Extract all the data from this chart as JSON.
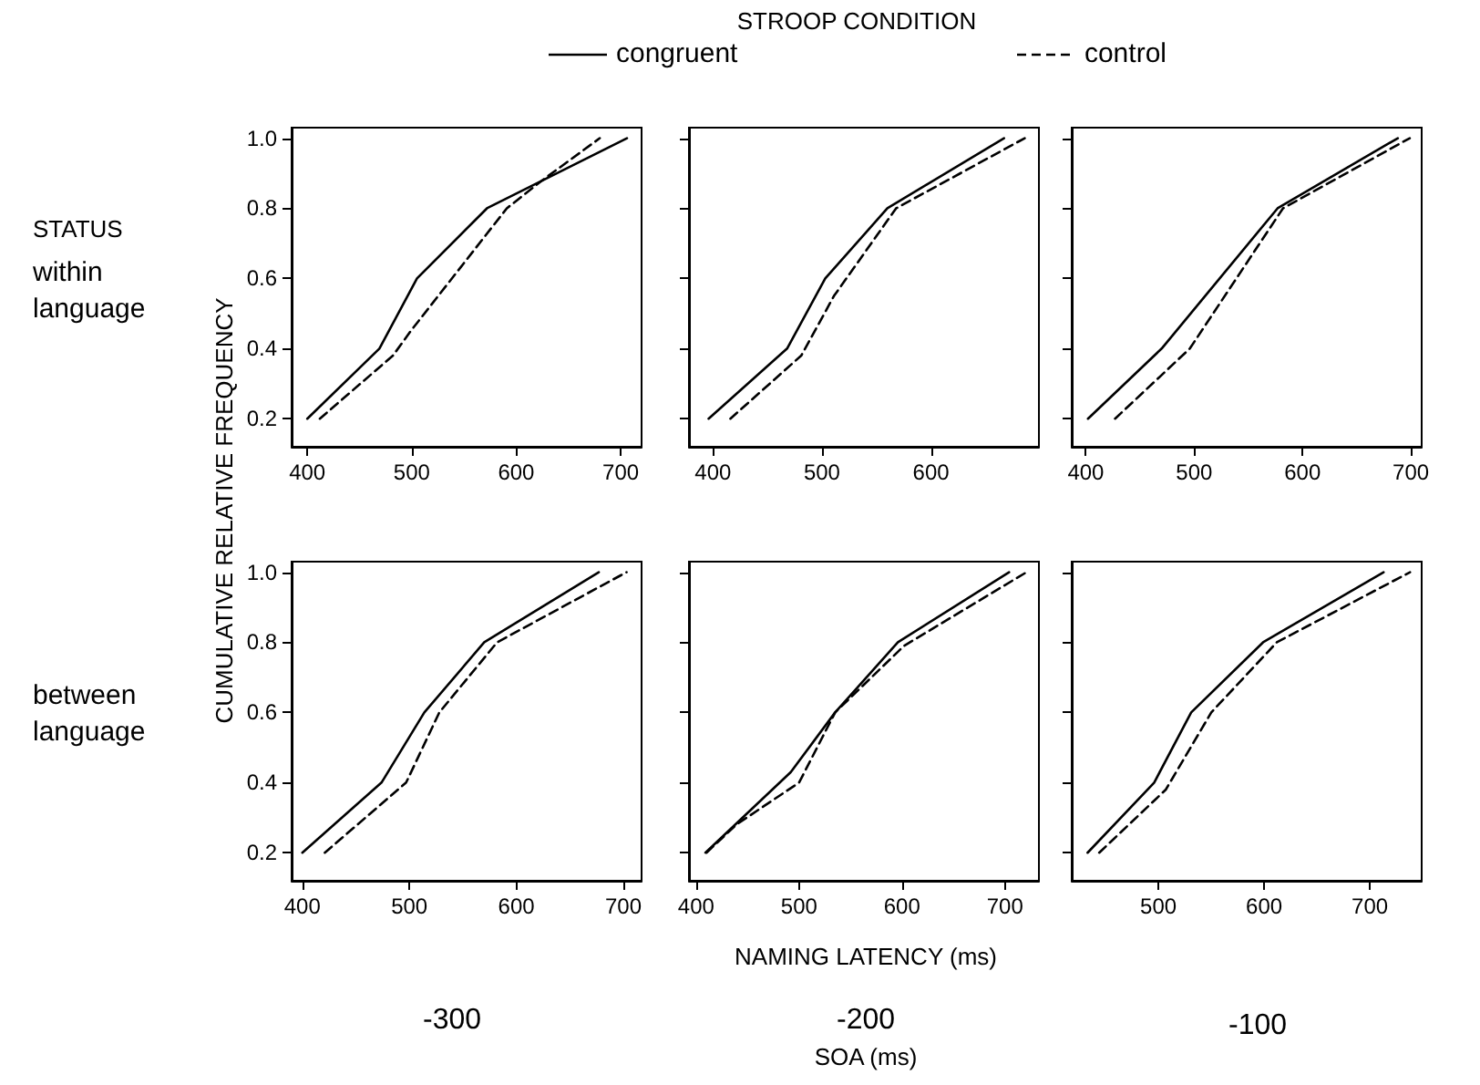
{
  "chart_data": [
    {
      "type": "line",
      "legend": "top",
      "legend_title": "STROOP CONDITION",
      "ylabel": "CUMULATIVE RELATIVE FREQUENCY",
      "annotations": [
        "STATUS",
        "within language"
      ],
      "xlim": [
        385,
        720
      ],
      "xticks": [
        400,
        500,
        600,
        700
      ],
      "ylim": [
        0.12,
        1.03
      ],
      "yticks": [
        {
          "value": 0.2,
          "label": "0.2"
        },
        {
          "value": 0.4,
          "label": "0.4"
        },
        {
          "value": 0.6,
          "label": "0.6"
        },
        {
          "value": 0.8,
          "label": "0.8"
        },
        {
          "value": 1,
          "label": "1.0"
        }
      ],
      "grid": false,
      "marker": "none",
      "series": [
        {
          "name": "congruent",
          "color": "#000000",
          "line_style": "solid",
          "x": [
            400,
            469,
            505,
            572,
            706
          ],
          "values": [
            0.2,
            0.4,
            0.6,
            0.8,
            1.0
          ]
        },
        {
          "name": "control",
          "color": "#000000",
          "line_style": "dashed",
          "x": [
            412,
            482,
            499,
            591,
            625,
            680
          ],
          "values": [
            0.2,
            0.38,
            0.45,
            0.8,
            0.88,
            1.0
          ]
        }
      ]
    },
    {
      "type": "line",
      "tick_labels": "x",
      "xlim": [
        378,
        699
      ],
      "xticks": [
        400,
        500,
        600
      ],
      "ylim": [
        0.12,
        1.03
      ],
      "yticks": [
        0.2,
        0.4,
        0.6,
        0.8,
        1
      ],
      "grid": false,
      "marker": "none",
      "series": [
        {
          "color": "#000000",
          "line_style": "solid",
          "x": [
            396,
            468,
            503,
            560,
            667
          ],
          "values": [
            0.2,
            0.4,
            0.6,
            0.8,
            1.0
          ]
        },
        {
          "color": "#000000",
          "line_style": "dashed",
          "x": [
            416,
            481,
            511,
            568,
            686
          ],
          "values": [
            0.2,
            0.38,
            0.55,
            0.8,
            1.0
          ]
        }
      ]
    },
    {
      "type": "line",
      "tick_labels": "x",
      "xlim": [
        387,
        710
      ],
      "xticks": [
        400,
        500,
        600,
        700
      ],
      "ylim": [
        0.12,
        1.03
      ],
      "yticks": [
        0.2,
        0.4,
        0.6,
        0.8,
        1
      ],
      "grid": false,
      "marker": "none",
      "series": [
        {
          "color": "#000000",
          "line_style": "solid",
          "x": [
            402,
            470,
            577,
            688
          ],
          "values": [
            0.2,
            0.4,
            0.8,
            1.0
          ]
        },
        {
          "color": "#000000",
          "line_style": "dashed",
          "x": [
            427,
            496,
            582,
            699
          ],
          "values": [
            0.2,
            0.4,
            0.8,
            1.0
          ]
        }
      ]
    },
    {
      "type": "line",
      "annotations": [
        "between language",
        "-300"
      ],
      "xlim": [
        390,
        717
      ],
      "xticks": [
        400,
        500,
        600,
        700
      ],
      "ylim": [
        0.12,
        1.03
      ],
      "yticks": [
        {
          "value": 0.2,
          "label": "0.2"
        },
        {
          "value": 0.4,
          "label": "0.4"
        },
        {
          "value": 0.6,
          "label": "0.6"
        },
        {
          "value": 0.8,
          "label": "0.8"
        },
        {
          "value": 1,
          "label": "1.0"
        }
      ],
      "grid": false,
      "marker": "none",
      "series": [
        {
          "color": "#000000",
          "line_style": "solid",
          "x": [
            400,
            474,
            514,
            570,
            677
          ],
          "values": [
            0.2,
            0.4,
            0.6,
            0.8,
            1.0
          ]
        },
        {
          "color": "#000000",
          "line_style": "dashed",
          "x": [
            421,
            497,
            528,
            582,
            703
          ],
          "values": [
            0.2,
            0.4,
            0.6,
            0.8,
            1.0
          ]
        }
      ]
    },
    {
      "type": "line",
      "tick_labels": "x",
      "xlabel": "NAMING LATENCY (ms)",
      "annotations": [
        "-200",
        "SOA (ms)"
      ],
      "xlim": [
        393,
        733
      ],
      "xticks": [
        400,
        500,
        600,
        700
      ],
      "ylim": [
        0.12,
        1.03
      ],
      "yticks": [
        0.2,
        0.4,
        0.6,
        0.8,
        1
      ],
      "grid": false,
      "marker": "none",
      "series": [
        {
          "color": "#000000",
          "line_style": "solid",
          "x": [
            409,
            492,
            535,
            596,
            704
          ],
          "values": [
            0.2,
            0.43,
            0.6,
            0.8,
            1.0
          ]
        },
        {
          "color": "#000000",
          "line_style": "dashed",
          "x": [
            410,
            439,
            500,
            535,
            602,
            721
          ],
          "values": [
            0.2,
            0.28,
            0.4,
            0.6,
            0.79,
            1.0
          ]
        }
      ]
    },
    {
      "type": "line",
      "tick_labels": "x",
      "annotations": [
        "-100"
      ],
      "xlim": [
        418,
        749
      ],
      "xticks": [
        500,
        600,
        700
      ],
      "ylim": [
        0.12,
        1.03
      ],
      "yticks": [
        0.2,
        0.4,
        0.6,
        0.8,
        1
      ],
      "grid": false,
      "marker": "none",
      "series": [
        {
          "color": "#000000",
          "line_style": "solid",
          "x": [
            433,
            496,
            531,
            599,
            713
          ],
          "values": [
            0.2,
            0.4,
            0.6,
            0.8,
            1.0
          ]
        },
        {
          "color": "#000000",
          "line_style": "dashed",
          "x": [
            444,
            507,
            550,
            612,
            738
          ],
          "values": [
            0.2,
            0.38,
            0.6,
            0.8,
            1.0
          ]
        }
      ]
    }
  ]
}
